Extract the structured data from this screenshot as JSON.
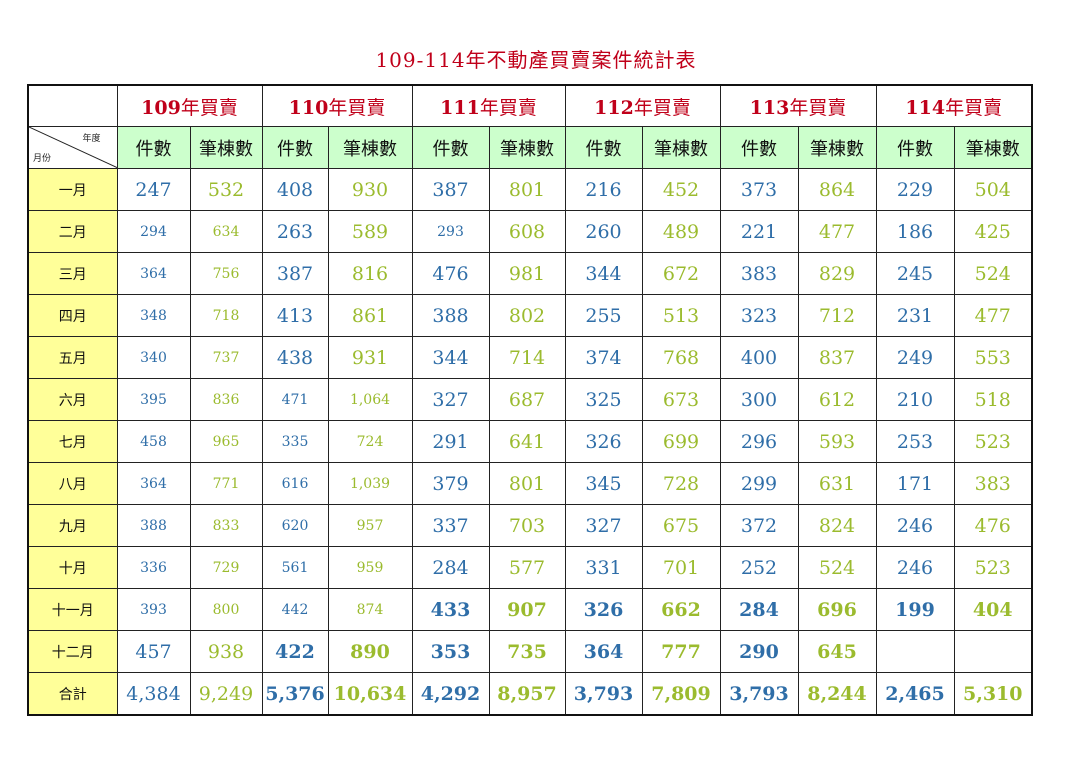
{
  "title": "109-114年不動產買賣案件統計表",
  "corner": {
    "year_label": "年度",
    "month_label": "月份"
  },
  "subheaders": {
    "count": "件數",
    "units": "筆棟數"
  },
  "years": [
    {
      "num": "109",
      "suffix": "年買賣"
    },
    {
      "num": "110",
      "suffix": "年買賣"
    },
    {
      "num": "111",
      "suffix": "年買賣"
    },
    {
      "num": "112",
      "suffix": "年買賣"
    },
    {
      "num": "113",
      "suffix": "年買賣"
    },
    {
      "num": "114",
      "suffix": "年買賣"
    }
  ],
  "rows": [
    {
      "month": "一月",
      "values": [
        "247",
        "532",
        "408",
        "930",
        "387",
        "801",
        "216",
        "452",
        "373",
        "864",
        "229",
        "504"
      ]
    },
    {
      "month": "二月",
      "values": [
        "294",
        "634",
        "263",
        "589",
        "293",
        "608",
        "260",
        "489",
        "221",
        "477",
        "186",
        "425"
      ]
    },
    {
      "month": "三月",
      "values": [
        "364",
        "756",
        "387",
        "816",
        "476",
        "981",
        "344",
        "672",
        "383",
        "829",
        "245",
        "524"
      ]
    },
    {
      "month": "四月",
      "values": [
        "348",
        "718",
        "413",
        "861",
        "388",
        "802",
        "255",
        "513",
        "323",
        "712",
        "231",
        "477"
      ]
    },
    {
      "month": "五月",
      "values": [
        "340",
        "737",
        "438",
        "931",
        "344",
        "714",
        "374",
        "768",
        "400",
        "837",
        "249",
        "553"
      ]
    },
    {
      "month": "六月",
      "values": [
        "395",
        "836",
        "471",
        "1,064",
        "327",
        "687",
        "325",
        "673",
        "300",
        "612",
        "210",
        "518"
      ]
    },
    {
      "month": "七月",
      "values": [
        "458",
        "965",
        "335",
        "724",
        "291",
        "641",
        "326",
        "699",
        "296",
        "593",
        "253",
        "523"
      ]
    },
    {
      "month": "八月",
      "values": [
        "364",
        "771",
        "616",
        "1,039",
        "379",
        "801",
        "345",
        "728",
        "299",
        "631",
        "171",
        "383"
      ]
    },
    {
      "month": "九月",
      "values": [
        "388",
        "833",
        "620",
        "957",
        "337",
        "703",
        "327",
        "675",
        "372",
        "824",
        "246",
        "476"
      ]
    },
    {
      "month": "十月",
      "values": [
        "336",
        "729",
        "561",
        "959",
        "284",
        "577",
        "331",
        "701",
        "252",
        "524",
        "246",
        "523"
      ]
    },
    {
      "month": "十一月",
      "values": [
        "393",
        "800",
        "442",
        "874",
        "433",
        "907",
        "326",
        "662",
        "284",
        "696",
        "199",
        "404"
      ]
    },
    {
      "month": "十二月",
      "values": [
        "457",
        "938",
        "422",
        "890",
        "353",
        "735",
        "364",
        "777",
        "290",
        "645",
        "",
        ""
      ]
    },
    {
      "month": "合計",
      "values": [
        "4,384",
        "9,249",
        "5,376",
        "10,634",
        "4,292",
        "8,957",
        "3,793",
        "7,809",
        "3,793",
        "8,244",
        "2,465",
        "5,310"
      ]
    }
  ]
}
